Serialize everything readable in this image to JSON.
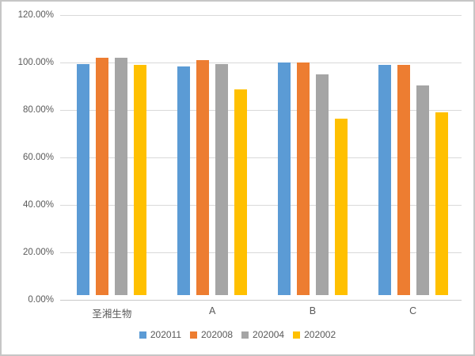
{
  "chart_data": {
    "type": "bar",
    "categories": [
      "圣湘生物",
      "A",
      "B",
      "C"
    ],
    "series": [
      {
        "name": "202011",
        "color": "#5B9BD5",
        "values": [
          97.5,
          96.5,
          98.0,
          97.0
        ]
      },
      {
        "name": "202008",
        "color": "#ED7D31",
        "values": [
          100.0,
          99.0,
          98.0,
          97.0
        ]
      },
      {
        "name": "202004",
        "color": "#A5A5A5",
        "values": [
          100.0,
          97.3,
          93.0,
          88.3
        ]
      },
      {
        "name": "202002",
        "color": "#FFC000",
        "values": [
          97.0,
          86.8,
          74.3,
          76.9
        ]
      }
    ],
    "title": "",
    "xlabel": "",
    "ylabel": "",
    "ylim": [
      0,
      120
    ],
    "ytick_step": 20,
    "ytick_labels": [
      "0.00%",
      "20.00%",
      "40.00%",
      "60.00%",
      "80.00%",
      "100.00%",
      "120.00%"
    ],
    "grid": true,
    "legend_position": "bottom"
  },
  "colors": {
    "gridline": "#D9D9D9",
    "axis_line": "#C9C9C9",
    "text": "#595959",
    "frame_border": "#C6C6C6",
    "background": "#FFFFFF"
  }
}
